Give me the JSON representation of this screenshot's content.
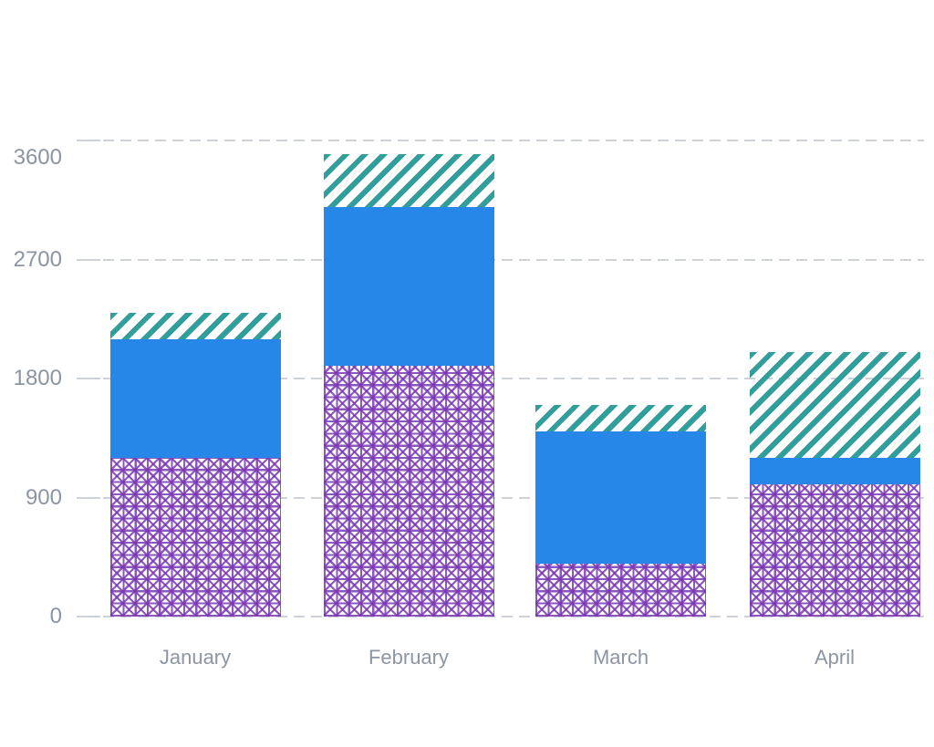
{
  "chart_data": {
    "type": "bar",
    "stacked": true,
    "title": "",
    "xlabel": "",
    "ylabel": "",
    "categories": [
      "January",
      "February",
      "March",
      "April"
    ],
    "series": [
      {
        "name": "purple-crosshatch",
        "pattern": "crosshatch",
        "color": "#7A38B4",
        "values": [
          1200,
          1900,
          400,
          1000
        ]
      },
      {
        "name": "blue-solid",
        "pattern": "solid",
        "color": "#2787E8",
        "values": [
          900,
          1200,
          1000,
          200
        ]
      },
      {
        "name": "teal-diagonal-stripes",
        "pattern": "diagonal-stripe",
        "color": "#319E9B",
        "values": [
          200,
          400,
          200,
          800
        ]
      }
    ],
    "stack_totals": [
      2300,
      3500,
      1600,
      2000
    ],
    "ylim": [
      0,
      3600
    ],
    "yticks": [
      0,
      900,
      1800,
      2700,
      3600
    ],
    "grid": "horizontal-dashed",
    "legend_position": "none"
  },
  "axes": {
    "y_tick_labels": [
      "0",
      "900",
      "1800",
      "2700",
      "3600"
    ],
    "x_tick_labels": [
      "January",
      "February",
      "March",
      "April"
    ]
  },
  "colors": {
    "background": "#FFFFFF",
    "gridline": "#CDD2D9",
    "tick_label": "#8C95A2",
    "bar_blue": "#2787E8",
    "bar_purple": "#7A38B4",
    "bar_teal": "#319E9B"
  }
}
